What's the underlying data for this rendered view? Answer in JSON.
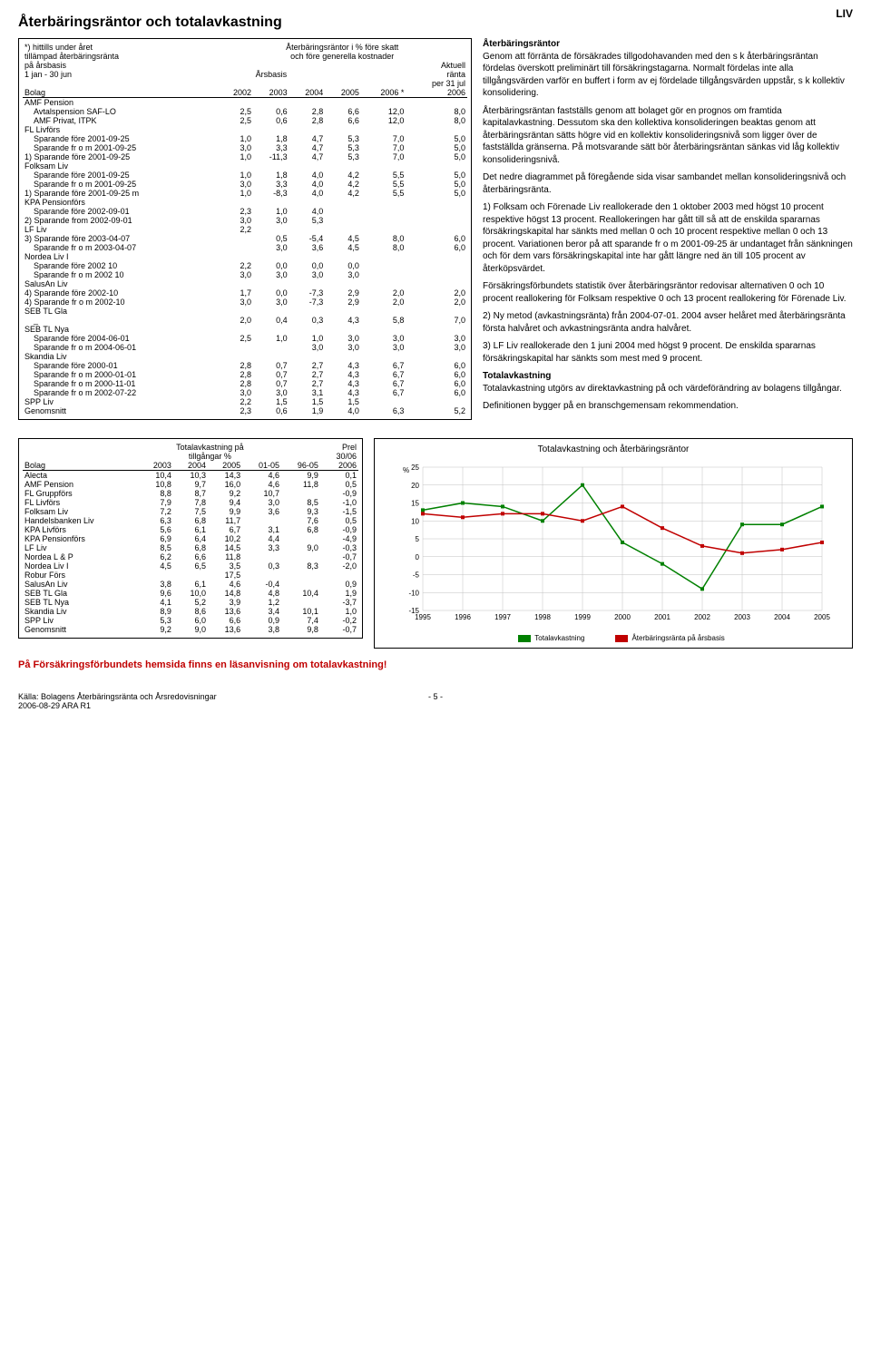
{
  "tag": "LIV",
  "title": "Återbäringsräntor och totalavkastning",
  "table1": {
    "header": {
      "l1": "*) hittills under året",
      "l2": "tillämpad återbäringsränta",
      "l3": "på årsbasis",
      "l4": "1 jan - 30 jun",
      "r1": "Återbäringsräntor i % före skatt",
      "r2": "och före generella kostnader",
      "r3a": "Aktuell",
      "r3": "ränta",
      "r3b": "per 31 jul",
      "bolag": "Bolag",
      "arsbasis": "Årsbasis",
      "years": [
        "2002",
        "2003",
        "2004",
        "2005",
        "2006 *",
        "2006"
      ]
    },
    "sections": [
      {
        "label": "AMF Pension",
        "rows": [
          {
            "n": "Avtalspension SAF-LO",
            "v": [
              "2,5",
              "0,6",
              "2,8",
              "6,6",
              "12,0",
              "8,0"
            ]
          },
          {
            "n": "AMF Privat, ITPK",
            "v": [
              "2,5",
              "0,6",
              "2,8",
              "6,6",
              "12,0",
              "8,0"
            ]
          }
        ]
      },
      {
        "label": "FL Livförs",
        "rows": [
          {
            "n": "Sparande före 2001-09-25",
            "v": [
              "1,0",
              "1,8",
              "4,7",
              "5,3",
              "7,0",
              "5,0"
            ]
          },
          {
            "n": "Sparande fr o m 2001-09-25",
            "v": [
              "3,0",
              "3,3",
              "4,7",
              "5,3",
              "7,0",
              "5,0"
            ]
          }
        ]
      },
      {
        "label": "",
        "rows": [
          {
            "n": "1) Sparande före 2001-09-25",
            "v": [
              "1,0",
              "-11,3",
              "4,7",
              "5,3",
              "7,0",
              "5,0"
            ],
            "noindent": true
          }
        ]
      },
      {
        "label": "Folksam Liv",
        "rows": [
          {
            "n": "Sparande före 2001-09-25",
            "v": [
              "1,0",
              "1,8",
              "4,0",
              "4,2",
              "5,5",
              "5,0"
            ]
          },
          {
            "n": "Sparande fr o m 2001-09-25",
            "v": [
              "3,0",
              "3,3",
              "4,0",
              "4,2",
              "5,5",
              "5,0"
            ]
          }
        ]
      },
      {
        "label": "",
        "rows": [
          {
            "n": "1) Sparande före 2001-09-25 m",
            "v": [
              "1,0",
              "-8,3",
              "4,0",
              "4,2",
              "5,5",
              "5,0"
            ],
            "noindent": true
          }
        ]
      },
      {
        "label": "KPA Pensionförs",
        "rows": [
          {
            "n": "Sparande före 2002-09-01",
            "v": [
              "2,3",
              "1,0",
              "4,0",
              "",
              "",
              ""
            ]
          }
        ]
      },
      {
        "label": "",
        "rows": [
          {
            "n": "2) Sparande from 2002-09-01",
            "v": [
              "3,0",
              "3,0",
              "5,3",
              "",
              "",
              ""
            ],
            "noindent": true
          }
        ]
      },
      {
        "label": "LF Liv",
        "inline": "2,2",
        "rows": []
      },
      {
        "label": "",
        "rows": [
          {
            "n": "3) Sparande före 2003-04-07",
            "v": [
              "",
              "0,5",
              "-5,4",
              "4,5",
              "8,0",
              "6,0"
            ],
            "noindent": true
          },
          {
            "n": "Sparande fr o m 2003-04-07",
            "v": [
              "",
              "3,0",
              "3,6",
              "4,5",
              "8,0",
              "6,0"
            ]
          }
        ]
      },
      {
        "label": "Nordea Liv I",
        "rows": [
          {
            "n": "Sparande före 2002 10",
            "v": [
              "2,2",
              "0,0",
              "0,0",
              "0,0",
              "",
              ""
            ]
          },
          {
            "n": "Sparande fr o m 2002 10",
            "v": [
              "3,0",
              "3,0",
              "3,0",
              "3,0",
              "",
              ""
            ]
          }
        ]
      },
      {
        "label": "SalusAn Liv",
        "rows": []
      },
      {
        "label": "",
        "rows": [
          {
            "n": "4) Sparande före 2002-10",
            "v": [
              "1,7",
              "0,0",
              "-7,3",
              "2,9",
              "2,0",
              "2,0"
            ],
            "noindent": true
          },
          {
            "n": "4) Sparande fr o m 2002-10",
            "v": [
              "3,0",
              "3,0",
              "-7,3",
              "2,9",
              "2,0",
              "2,0"
            ],
            "noindent": true
          }
        ]
      },
      {
        "label": "SEB TL Gla",
        "rows": [
          {
            "n": "_",
            "v": [
              "2,0",
              "0,4",
              "0,3",
              "4,3",
              "5,8",
              "7,0"
            ]
          }
        ]
      },
      {
        "label": "SEB TL Nya",
        "rows": [
          {
            "n": "Sparande före 2004-06-01",
            "v": [
              "2,5",
              "1,0",
              "1,0",
              "3,0",
              "3,0",
              "3,0"
            ]
          },
          {
            "n": "Sparande fr o m 2004-06-01",
            "v": [
              "",
              "",
              "3,0",
              "3,0",
              "3,0",
              "3,0"
            ]
          }
        ]
      },
      {
        "label": "Skandia Liv",
        "rows": [
          {
            "n": "Sparande före 2000-01",
            "v": [
              "2,8",
              "0,7",
              "2,7",
              "4,3",
              "6,7",
              "6,0"
            ]
          },
          {
            "n": "Sparande fr o m 2000-01-01",
            "v": [
              "2,8",
              "0,7",
              "2,7",
              "4,3",
              "6,7",
              "6,0"
            ]
          },
          {
            "n": "Sparande fr o m 2000-11-01",
            "v": [
              "2,8",
              "0,7",
              "2,7",
              "4,3",
              "6,7",
              "6,0"
            ]
          },
          {
            "n": "Sparande fr o m 2002-07-22",
            "v": [
              "3,0",
              "3,0",
              "3,1",
              "4,3",
              "6,7",
              "6,0"
            ]
          }
        ]
      },
      {
        "label": "",
        "rows": [
          {
            "n": "SPP Liv",
            "v": [
              "2,2",
              "1,5",
              "1,5",
              "1,5",
              "",
              ""
            ],
            "noindent": true
          },
          {
            "n": "Genomsnitt",
            "v": [
              "2,3",
              "0,6",
              "1,9",
              "4,0",
              "6,3",
              "5,2"
            ],
            "noindent": true
          }
        ]
      }
    ]
  },
  "text": {
    "h1": "Återbäringsräntor",
    "p1": "Genom att förränta de försäkrades tillgodohavanden med den s k återbäringsräntan fördelas överskott preliminärt till försäkringstagarna. Normalt fördelas inte alla tillgångsvärden varför en buffert i form av ej fördelade tillgångsvärden uppstår, s k kollektiv konsolidering.",
    "p2": "Återbäringsräntan fastställs genom att bolaget gör en prognos om framtida kapitalavkastning. Dessutom ska den kollektiva konsolideringen beaktas genom att återbäringsräntan sätts högre vid en kollektiv konsolideringsnivå som ligger över de fastställda gränserna. På motsvarande sätt bör återbäringsräntan sänkas vid låg kollektiv konsolideringsnivå.",
    "p3": "Det nedre diagrammet på föregående sida visar sambandet mellan konsolideringsnivå och återbäringsränta.",
    "p4": "1) Folksam och Förenade Liv reallokerade den 1 oktober 2003 med högst 10 procent respektive högst 13 procent. Reallokeringen har gått till så att de enskilda spararnas försäkringskapital har sänkts med mellan 0 och 10 procent respektive mellan 0 och 13 procent. Variationen beror på att sparande fr o m 2001-09-25 är undantaget från sänkningen och för dem vars försäkringskapital inte har gått längre ned än till 105 procent av återköpsvärdet.",
    "p5": "Försäkringsförbundets statistik över återbäringsräntor redovisar alternativen 0 och 10 procent reallokering för Folksam respektive 0 och 13 procent reallokering för Förenade Liv.",
    "p6": "2) Ny metod (avkastningsränta) från 2004-07-01. 2004 avser helåret med återbäringsränta första halvåret och avkastningsränta andra halvåret.",
    "p7": "3) LF Liv reallokerade den 1 juni 2004 med högst 9 procent. De enskilda spararnas försäkringskapital har sänkts som mest med 9 procent.",
    "h2": "Totalavkastning",
    "p8": "Totalavkastning utgörs av direktavkastning på och värdeförändring av bolagens tillgångar.",
    "p9": "Definitionen bygger på en branschgemensam rekommendation."
  },
  "table2": {
    "hdr1": "Totalavkastning på",
    "hdr2": "tillgångar %",
    "hdr3": "Prel",
    "hdr4": "30/06",
    "bolag": "Bolag",
    "cols": [
      "2003",
      "2004",
      "2005",
      "01-05",
      "96-05",
      "2006"
    ],
    "rows": [
      {
        "n": "Alecta",
        "v": [
          "10,4",
          "10,3",
          "14,3",
          "4,6",
          "9,9",
          "0,1"
        ]
      },
      {
        "n": "AMF Pension",
        "v": [
          "10,8",
          "9,7",
          "16,0",
          "4,6",
          "11,8",
          "0,5"
        ]
      },
      {
        "n": "FL Gruppförs",
        "v": [
          "8,8",
          "8,7",
          "9,2",
          "10,7",
          "",
          "-0,9"
        ]
      },
      {
        "n": "FL Livförs",
        "v": [
          "7,9",
          "7,8",
          "9,4",
          "3,0",
          "8,5",
          "-1,0"
        ]
      },
      {
        "n": "Folksam Liv",
        "v": [
          "7,2",
          "7,5",
          "9,9",
          "3,6",
          "9,3",
          "-1,5"
        ]
      },
      {
        "n": "Handelsbanken Liv",
        "v": [
          "6,3",
          "6,8",
          "11,7",
          "",
          "7,6",
          "0,5"
        ]
      },
      {
        "n": "KPA Livförs",
        "v": [
          "5,6",
          "6,1",
          "6,7",
          "3,1",
          "6,8",
          "-0,9"
        ]
      },
      {
        "n": "KPA Pensionförs",
        "v": [
          "6,9",
          "6,4",
          "10,2",
          "4,4",
          "",
          "-4,9"
        ]
      },
      {
        "n": "LF Liv",
        "v": [
          "8,5",
          "6,8",
          "14,5",
          "3,3",
          "9,0",
          "-0,3"
        ]
      },
      {
        "n": "Nordea L & P",
        "v": [
          "6,2",
          "6,6",
          "11,8",
          "",
          "",
          "-0,7"
        ]
      },
      {
        "n": "Nordea Liv I",
        "v": [
          "4,5",
          "6,5",
          "3,5",
          "0,3",
          "8,3",
          "-2,0"
        ]
      },
      {
        "n": "Robur Förs",
        "v": [
          "",
          "",
          "17,5",
          "",
          "",
          ""
        ]
      },
      {
        "n": "SalusAn Liv",
        "v": [
          "3,8",
          "6,1",
          "4,6",
          "-0,4",
          "",
          "0,9"
        ]
      },
      {
        "n": "SEB TL Gla",
        "v": [
          "9,6",
          "10,0",
          "14,8",
          "4,8",
          "10,4",
          "1,9"
        ]
      },
      {
        "n": "SEB TL Nya",
        "v": [
          "4,1",
          "5,2",
          "3,9",
          "1,2",
          "",
          "-3,7"
        ]
      },
      {
        "n": "Skandia Liv",
        "v": [
          "8,9",
          "8,6",
          "13,6",
          "3,4",
          "10,1",
          "1,0"
        ]
      },
      {
        "n": "SPP Liv",
        "v": [
          "5,3",
          "6,0",
          "6,6",
          "0,9",
          "7,4",
          "-0,2"
        ]
      },
      {
        "n": "Genomsnitt",
        "v": [
          "9,2",
          "9,0",
          "13,6",
          "3,8",
          "9,8",
          "-0,7"
        ]
      }
    ]
  },
  "chart": {
    "title": "Totalavkastning och återbäringsräntor",
    "ylabel": "%",
    "ylim": [
      -15,
      25
    ],
    "ytick": 5,
    "xlabels": [
      "1995",
      "1996",
      "1997",
      "1998",
      "1999",
      "2000",
      "2001",
      "2002",
      "2003",
      "2004",
      "2005"
    ],
    "grid_color": "#c0c0c0",
    "series": [
      {
        "name": "Totalavkastning",
        "color": "#008000",
        "marker": "square",
        "values": [
          13,
          15,
          14,
          10,
          20,
          4,
          -2,
          -9,
          9,
          9,
          14
        ]
      },
      {
        "name": "Återbäringsränta på årsbasis",
        "color": "#c00000",
        "marker": "square",
        "values": [
          12,
          11,
          12,
          12,
          10,
          14,
          8,
          3,
          1,
          2,
          4
        ]
      }
    ]
  },
  "red_note": "På Försäkringsförbundets hemsida finns en läsanvisning om totalavkastning!",
  "footer": {
    "src1": "Källa: Bolagens Återbäringsränta och Årsredovisningar",
    "src2": "2006-08-29  ARA R1",
    "page": "- 5 -"
  }
}
